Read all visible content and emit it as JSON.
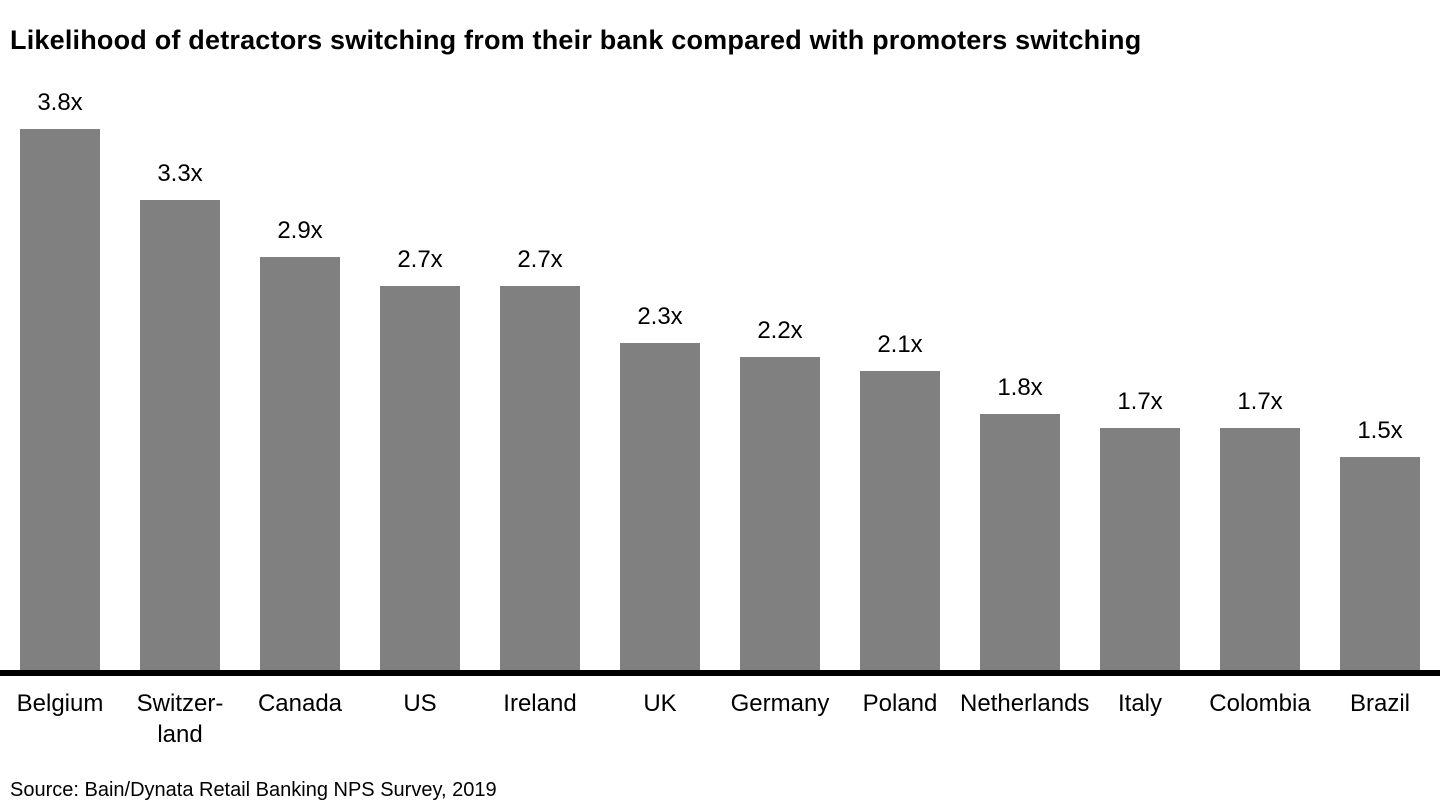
{
  "title": "Likelihood of detractors switching from their bank compared with promoters switching",
  "source": "Source: Bain/Dynata Retail Banking NPS Survey, 2019",
  "chart_data": {
    "type": "bar",
    "title": "Likelihood of detractors switching from their bank compared with promoters switching",
    "categories": [
      "Belgium",
      "Switzer-\nland",
      "Canada",
      "US",
      "Ireland",
      "UK",
      "Germany",
      "Poland",
      "Netherlands",
      "Italy",
      "Colombia",
      "Brazil"
    ],
    "values": [
      3.8,
      3.3,
      2.9,
      2.7,
      2.7,
      2.3,
      2.2,
      2.1,
      1.8,
      1.7,
      1.7,
      1.5
    ],
    "value_labels": [
      "3.8x",
      "3.3x",
      "2.9x",
      "2.7x",
      "2.7x",
      "2.3x",
      "2.2x",
      "2.1x",
      "1.8x",
      "1.7x",
      "1.7x",
      "1.5x"
    ],
    "xlabel": "",
    "ylabel": "",
    "ylim": [
      0,
      4.7
    ],
    "grid": false,
    "legend": false,
    "bar_color": "#808080",
    "axis_color": "#000000"
  }
}
